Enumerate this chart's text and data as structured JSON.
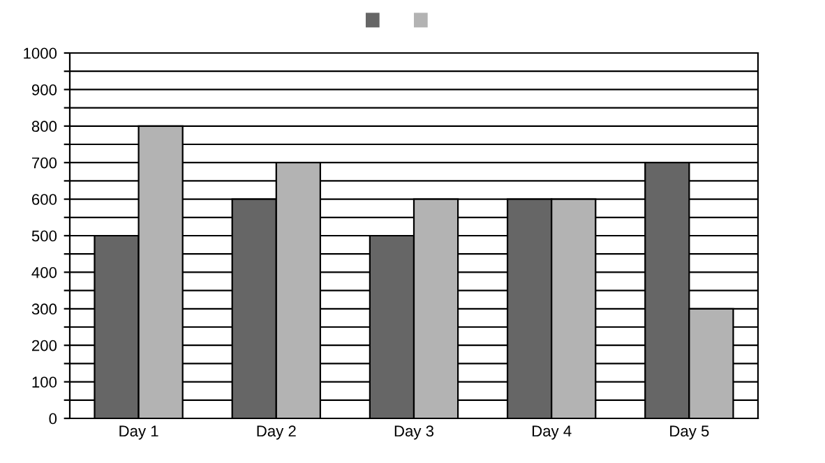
{
  "chart_data": {
    "type": "bar",
    "categories": [
      "Day 1",
      "Day 2",
      "Day 3",
      "Day 4",
      "Day 5"
    ],
    "series": [
      {
        "color": "#666666",
        "values": [
          500,
          600,
          500,
          600,
          700
        ]
      },
      {
        "color": "#b3b3b3",
        "values": [
          800,
          700,
          600,
          600,
          300
        ]
      }
    ],
    "ylim": [
      0,
      1000
    ],
    "yticks": [
      0,
      {
        "value": 50,
        "label": null
      },
      100,
      {
        "value": 150,
        "label": null
      },
      200,
      {
        "value": 250,
        "label": null
      },
      300,
      {
        "value": 350,
        "label": null
      },
      400,
      {
        "value": 450,
        "label": null
      },
      500,
      {
        "value": 550,
        "label": null
      },
      600,
      {
        "value": 650,
        "label": null
      },
      700,
      {
        "value": 750,
        "label": null
      },
      800,
      {
        "value": 850,
        "label": null
      },
      900,
      {
        "value": 950,
        "label": null
      },
      1000
    ],
    "grid": "y"
  }
}
